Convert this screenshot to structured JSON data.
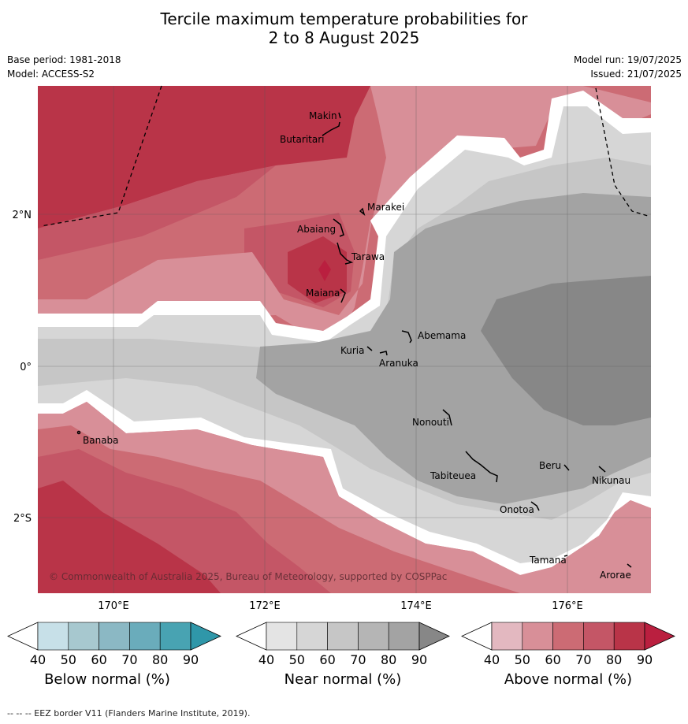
{
  "title_line1": "Tercile maximum temperature probabilities for",
  "title_line2": "2 to 8 August 2025",
  "base_period": "Base period: 1981-2018",
  "model": "Model: ACCESS-S2",
  "model_run": "Model run: 19/07/2025",
  "issued": "Issued: 21/07/2025",
  "lat_labels": [
    "2°N",
    "0°",
    "2°S"
  ],
  "lon_labels": [
    "170°E",
    "172°E",
    "174°E",
    "176°E"
  ],
  "islands": [
    {
      "name": "Makin",
      "lon": 172.95,
      "lat": 3.1
    },
    {
      "name": "Butaritari",
      "lon": 172.8,
      "lat": 3.05
    },
    {
      "name": "Marakei",
      "lon": 173.3,
      "lat": 2.0
    },
    {
      "name": "Abaiang",
      "lon": 172.95,
      "lat": 1.85
    },
    {
      "name": "Tarawa",
      "lon": 173.0,
      "lat": 1.4
    },
    {
      "name": "Maiana",
      "lon": 173.0,
      "lat": 0.95
    },
    {
      "name": "Abemama",
      "lon": 173.85,
      "lat": 0.4
    },
    {
      "name": "Kuria",
      "lon": 173.4,
      "lat": 0.25
    },
    {
      "name": "Aranuka",
      "lon": 173.6,
      "lat": 0.15
    },
    {
      "name": "Banaba",
      "lon": 169.55,
      "lat": -0.87
    },
    {
      "name": "Nonouti",
      "lon": 174.4,
      "lat": -0.7
    },
    {
      "name": "Tabiteuea",
      "lon": 174.9,
      "lat": -1.4
    },
    {
      "name": "Beru",
      "lon": 176.0,
      "lat": -1.35
    },
    {
      "name": "Nikunau",
      "lon": 176.45,
      "lat": -1.35
    },
    {
      "name": "Onotoa",
      "lon": 175.55,
      "lat": -1.85
    },
    {
      "name": "Tamana",
      "lon": 175.98,
      "lat": -2.5
    },
    {
      "name": "Arorae",
      "lon": 176.8,
      "lat": -2.65
    }
  ],
  "copyright": "© Commonwealth of Australia 2025, Bureau of Meteorology, supported by COSPPac",
  "colorbars": [
    {
      "title": "Below normal (%)",
      "ticks": [
        "40",
        "50",
        "60",
        "70",
        "80",
        "90"
      ],
      "colors": [
        "#ffffff",
        "#c7e0e8",
        "#a7c8cf",
        "#8bb8c4",
        "#6aacbb",
        "#48a3b2",
        "#2f97a9"
      ]
    },
    {
      "title": "Near normal (%)",
      "ticks": [
        "40",
        "50",
        "60",
        "70",
        "80",
        "90"
      ],
      "colors": [
        "#ffffff",
        "#e4e4e4",
        "#d6d6d6",
        "#c6c6c6",
        "#b5b5b5",
        "#a3a3a3",
        "#878787"
      ]
    },
    {
      "title": "Above normal (%)",
      "ticks": [
        "40",
        "50",
        "60",
        "70",
        "80",
        "90"
      ],
      "colors": [
        "#ffffff",
        "#e3b8c0",
        "#d88f98",
        "#cc6b74",
        "#c45666",
        "#b93448",
        "#ba1f3f"
      ]
    }
  ],
  "footer": "-- -- -- EEZ border V11 (Flanders Marine Institute, 2019)."
}
